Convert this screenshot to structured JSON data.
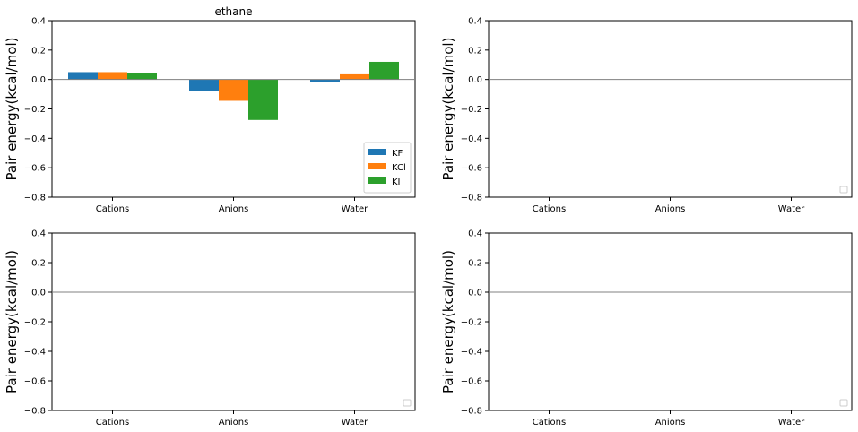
{
  "chart_data": [
    {
      "type": "bar",
      "title": "ethane",
      "ylabel": "Pair energy(kcal/mol)",
      "xlabel": "",
      "categories": [
        "Cations",
        "Anions",
        "Water"
      ],
      "series": [
        {
          "name": "KF",
          "values": [
            0.05,
            -0.08,
            -0.02
          ]
        },
        {
          "name": "KCl",
          "values": [
            0.05,
            -0.145,
            0.035
          ]
        },
        {
          "name": "KI",
          "values": [
            0.043,
            -0.275,
            0.12
          ]
        }
      ],
      "ylim": [
        -0.8,
        0.4
      ],
      "yticks": [
        "−0.8",
        "−0.6",
        "−0.4",
        "−0.2",
        "0.0",
        "0.2",
        "0.4"
      ],
      "legend": "lower-right",
      "grid": false
    },
    {
      "type": "bar",
      "title": "",
      "ylabel": "Pair energy(kcal/mol)",
      "categories": [
        "Cations",
        "Anions",
        "Water"
      ],
      "series": [],
      "ylim": [
        -0.8,
        0.4
      ],
      "yticks": [
        "−0.8",
        "−0.6",
        "−0.4",
        "−0.2",
        "0.0",
        "0.2",
        "0.4"
      ],
      "legend": "lower-right",
      "grid": false
    },
    {
      "type": "bar",
      "title": "",
      "ylabel": "Pair energy(kcal/mol)",
      "categories": [
        "Cations",
        "Anions",
        "Water"
      ],
      "series": [],
      "ylim": [
        -0.8,
        0.4
      ],
      "yticks": [
        "−0.8",
        "−0.6",
        "−0.4",
        "−0.2",
        "0.0",
        "0.2",
        "0.4"
      ],
      "legend": "lower-right",
      "grid": false
    },
    {
      "type": "bar",
      "title": "",
      "ylabel": "Pair energy(kcal/mol)",
      "categories": [
        "Cations",
        "Anions",
        "Water"
      ],
      "series": [],
      "ylim": [
        -0.8,
        0.4
      ],
      "yticks": [
        "−0.8",
        "−0.6",
        "−0.4",
        "−0.2",
        "0.0",
        "0.2",
        "0.4"
      ],
      "legend": "lower-right",
      "grid": false
    }
  ],
  "colors": {
    "series": [
      "#1f77b4",
      "#ff7f0e",
      "#2ca02c"
    ],
    "zero_line": "#808080"
  }
}
